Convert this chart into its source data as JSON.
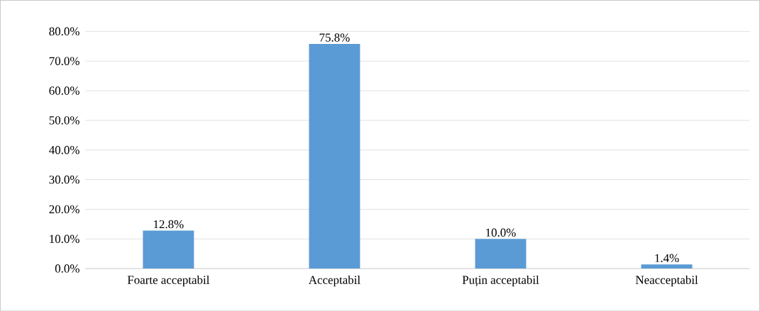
{
  "chart_data": {
    "type": "bar",
    "categories": [
      "Foarte acceptabil",
      "Acceptabil",
      "Puțin acceptabil",
      "Neacceptabil"
    ],
    "values": [
      12.8,
      75.8,
      10.0,
      1.4
    ],
    "color": "#5b9bd5",
    "value_labels": [
      "12.8%",
      "75.8%",
      "10.0%",
      "1.4%"
    ],
    "ylim": [
      0,
      80
    ],
    "yticks": [
      {
        "value": 0,
        "label": "0.0%"
      },
      {
        "value": 10,
        "label": "10.0%"
      },
      {
        "value": 20,
        "label": "20.0%"
      },
      {
        "value": 30,
        "label": "30.0%"
      },
      {
        "value": 40,
        "label": "40.0%"
      },
      {
        "value": 50,
        "label": "50.0%"
      },
      {
        "value": 60,
        "label": "60.0%"
      },
      {
        "value": 70,
        "label": "70.0%"
      },
      {
        "value": 80,
        "label": "80.0%"
      }
    ],
    "grid": "y"
  }
}
